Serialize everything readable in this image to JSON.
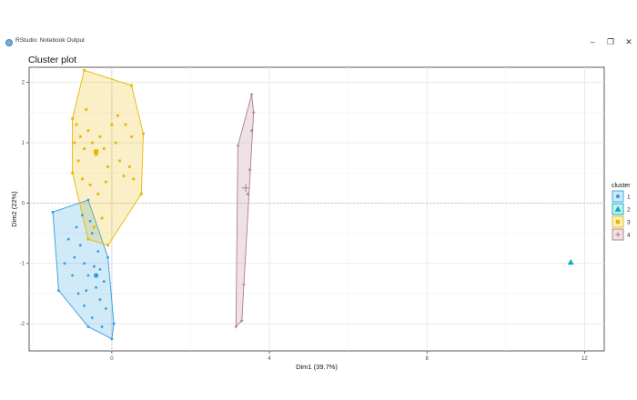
{
  "window": {
    "title": "RStudio: Notebook Output",
    "minimize_glyph": "–",
    "maximize_glyph": "❐",
    "close_glyph": "✕"
  },
  "chart_data": {
    "type": "scatter",
    "title": "Cluster plot",
    "xlabel": "Dim1 (39.7%)",
    "ylabel": "Dim2 (22%)",
    "xlim": [
      -2.1,
      12.5
    ],
    "ylim": [
      -2.45,
      2.25
    ],
    "xticks": [
      0,
      4,
      8,
      12
    ],
    "yticks": [
      -2,
      -1,
      0,
      1,
      2
    ],
    "grid": true,
    "legend": {
      "title": "cluster",
      "placement": "right"
    },
    "series": [
      {
        "name": "1",
        "color": "#2E9FDF",
        "shape": "circle",
        "hull": [
          [
            -1.5,
            -0.15
          ],
          [
            -0.6,
            0.05
          ],
          [
            -0.1,
            -0.9
          ],
          [
            0.05,
            -2.0
          ],
          [
            0.0,
            -2.25
          ],
          [
            -0.6,
            -2.05
          ],
          [
            -1.35,
            -1.45
          ]
        ],
        "center": [
          -0.4,
          -1.2
        ],
        "points": [
          [
            -1.5,
            -0.15
          ],
          [
            -0.6,
            0.05
          ],
          [
            -0.1,
            -0.9
          ],
          [
            0.05,
            -2.0
          ],
          [
            0.0,
            -2.25
          ],
          [
            -0.6,
            -2.05
          ],
          [
            -1.35,
            -1.45
          ],
          [
            -1.1,
            -0.6
          ],
          [
            -0.9,
            -0.4
          ],
          [
            -0.8,
            -0.7
          ],
          [
            -0.7,
            -1.0
          ],
          [
            -0.6,
            -1.2
          ],
          [
            -0.5,
            -0.5
          ],
          [
            -0.4,
            -1.4
          ],
          [
            -0.3,
            -1.1
          ],
          [
            -1.0,
            -1.2
          ],
          [
            -0.85,
            -1.5
          ],
          [
            -0.7,
            -1.7
          ],
          [
            -0.5,
            -1.9
          ],
          [
            -0.3,
            -1.6
          ],
          [
            -0.2,
            -1.3
          ],
          [
            -0.35,
            -0.8
          ],
          [
            -0.55,
            -0.3
          ],
          [
            -0.75,
            -0.2
          ],
          [
            -0.95,
            -0.9
          ],
          [
            -1.2,
            -1.0
          ],
          [
            -0.65,
            -1.45
          ],
          [
            -0.45,
            -1.05
          ],
          [
            -0.25,
            -2.05
          ],
          [
            -0.15,
            -1.75
          ]
        ]
      },
      {
        "name": "2",
        "color": "#00AFBB",
        "shape": "triangle",
        "hull": [],
        "center": [
          11.65,
          -0.98
        ],
        "points": [
          [
            11.65,
            -0.98
          ]
        ]
      },
      {
        "name": "3",
        "color": "#E7B800",
        "shape": "square",
        "hull": [
          [
            -0.7,
            2.2
          ],
          [
            0.5,
            1.95
          ],
          [
            0.8,
            1.15
          ],
          [
            0.75,
            0.15
          ],
          [
            -0.1,
            -0.7
          ],
          [
            -0.6,
            -0.6
          ],
          [
            -1.0,
            0.5
          ],
          [
            -1.0,
            1.4
          ]
        ],
        "center": [
          -0.4,
          0.85
        ],
        "points": [
          [
            -0.7,
            2.2
          ],
          [
            0.5,
            1.95
          ],
          [
            0.8,
            1.15
          ],
          [
            0.75,
            0.15
          ],
          [
            -0.1,
            -0.7
          ],
          [
            -0.6,
            -0.6
          ],
          [
            -1.0,
            0.5
          ],
          [
            -1.0,
            1.4
          ],
          [
            -0.9,
            1.3
          ],
          [
            -0.8,
            1.1
          ],
          [
            -0.7,
            0.9
          ],
          [
            -0.6,
            1.2
          ],
          [
            -0.5,
            1.0
          ],
          [
            -0.4,
            0.8
          ],
          [
            -0.3,
            1.1
          ],
          [
            -0.2,
            0.9
          ],
          [
            -0.1,
            0.6
          ],
          [
            0.0,
            1.3
          ],
          [
            0.1,
            1.0
          ],
          [
            0.2,
            0.7
          ],
          [
            0.3,
            0.45
          ],
          [
            0.45,
            0.6
          ],
          [
            0.5,
            1.1
          ],
          [
            -0.85,
            0.7
          ],
          [
            -0.75,
            0.4
          ],
          [
            -0.55,
            0.3
          ],
          [
            -0.35,
            0.15
          ],
          [
            -0.25,
            -0.25
          ],
          [
            -0.45,
            -0.4
          ],
          [
            -0.65,
            1.55
          ],
          [
            0.15,
            1.45
          ],
          [
            0.55,
            0.4
          ],
          [
            -0.95,
            1.0
          ],
          [
            -0.15,
            0.35
          ],
          [
            0.35,
            1.3
          ]
        ]
      },
      {
        "name": "4",
        "color": "#B07C8A",
        "shape": "cross",
        "hull": [
          [
            3.55,
            1.8
          ],
          [
            3.6,
            1.5
          ],
          [
            3.3,
            -1.95
          ],
          [
            3.15,
            -2.05
          ],
          [
            3.2,
            0.95
          ]
        ],
        "center": [
          3.4,
          0.25
        ],
        "points": [
          [
            3.55,
            1.8
          ],
          [
            3.6,
            1.5
          ],
          [
            3.3,
            -1.95
          ],
          [
            3.15,
            -2.05
          ],
          [
            3.2,
            0.95
          ],
          [
            3.55,
            1.2
          ],
          [
            3.5,
            0.55
          ],
          [
            3.35,
            -1.35
          ],
          [
            3.45,
            0.15
          ]
        ]
      }
    ]
  }
}
